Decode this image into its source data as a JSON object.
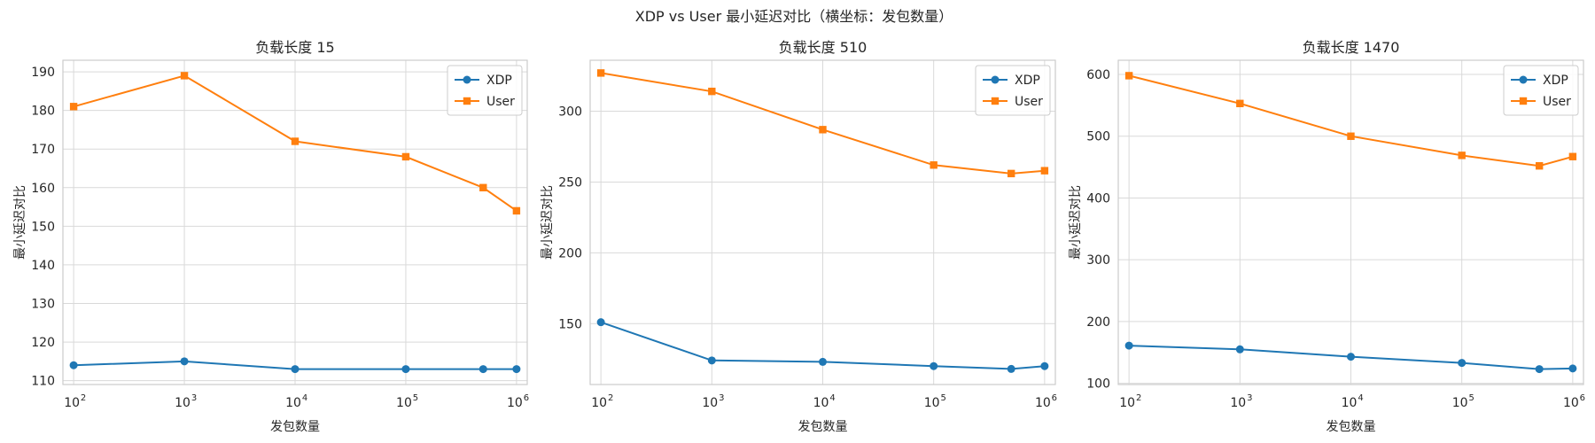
{
  "figure": {
    "title": "XDP vs User 最小延迟对比（横坐标：发包数量）"
  },
  "chart_data": [
    {
      "type": "line",
      "title": "负载长度 15",
      "xlabel": "发包数量",
      "ylabel": "最小延迟对比",
      "xscale": "log",
      "x": [
        100,
        1000,
        10000,
        100000,
        500000,
        1000000
      ],
      "xticks": [
        100,
        1000,
        10000,
        100000,
        1000000
      ],
      "xtick_labels": [
        {
          "base": "10",
          "exp": "2"
        },
        {
          "base": "10",
          "exp": "3"
        },
        {
          "base": "10",
          "exp": "4"
        },
        {
          "base": "10",
          "exp": "5"
        },
        {
          "base": "10",
          "exp": "6"
        }
      ],
      "ylim": [
        109,
        193
      ],
      "yticks": [
        110,
        120,
        130,
        140,
        150,
        160,
        170,
        180,
        190
      ],
      "ytick_labels": [
        "110",
        "120",
        "130",
        "140",
        "150",
        "160",
        "170",
        "180",
        "190"
      ],
      "grid": true,
      "legend": "upper right",
      "series": [
        {
          "name": "XDP",
          "marker": "circle",
          "color": "#1f77b4",
          "values": [
            114,
            115,
            113,
            113,
            113,
            113
          ]
        },
        {
          "name": "User",
          "marker": "square",
          "color": "#ff7f0e",
          "values": [
            181,
            189,
            172,
            168,
            160,
            154
          ]
        }
      ]
    },
    {
      "type": "line",
      "title": "负载长度 510",
      "xlabel": "发包数量",
      "ylabel": "最小延迟对比",
      "xscale": "log",
      "x": [
        100,
        1000,
        10000,
        100000,
        500000,
        1000000
      ],
      "xticks": [
        100,
        1000,
        10000,
        100000,
        1000000
      ],
      "xtick_labels": [
        {
          "base": "10",
          "exp": "2"
        },
        {
          "base": "10",
          "exp": "3"
        },
        {
          "base": "10",
          "exp": "4"
        },
        {
          "base": "10",
          "exp": "5"
        },
        {
          "base": "10",
          "exp": "6"
        }
      ],
      "ylim": [
        107,
        336
      ],
      "yticks": [
        150,
        200,
        250,
        300
      ],
      "ytick_labels": [
        "150",
        "200",
        "250",
        "300"
      ],
      "grid": true,
      "legend": "upper right",
      "series": [
        {
          "name": "XDP",
          "marker": "circle",
          "color": "#1f77b4",
          "values": [
            151,
            124,
            123,
            120,
            118,
            120
          ]
        },
        {
          "name": "User",
          "marker": "square",
          "color": "#ff7f0e",
          "values": [
            327,
            314,
            287,
            262,
            256,
            258
          ]
        }
      ]
    },
    {
      "type": "line",
      "title": "负载长度 1470",
      "xlabel": "发包数量",
      "ylabel": "最小延迟对比",
      "xscale": "log",
      "x": [
        100,
        1000,
        10000,
        100000,
        500000,
        1000000
      ],
      "xticks": [
        100,
        1000,
        10000,
        100000,
        1000000
      ],
      "xtick_labels": [
        {
          "base": "10",
          "exp": "2"
        },
        {
          "base": "10",
          "exp": "3"
        },
        {
          "base": "10",
          "exp": "4"
        },
        {
          "base": "10",
          "exp": "5"
        },
        {
          "base": "10",
          "exp": "6"
        }
      ],
      "ylim": [
        98,
        623
      ],
      "yticks": [
        100,
        200,
        300,
        400,
        500,
        600
      ],
      "ytick_labels": [
        "100",
        "200",
        "300",
        "400",
        "500",
        "600"
      ],
      "grid": true,
      "legend": "upper right",
      "series": [
        {
          "name": "XDP",
          "marker": "circle",
          "color": "#1f77b4",
          "values": [
            161,
            155,
            143,
            133,
            123,
            124
          ]
        },
        {
          "name": "User",
          "marker": "square",
          "color": "#ff7f0e",
          "values": [
            598,
            553,
            500,
            469,
            452,
            467
          ]
        }
      ]
    }
  ]
}
